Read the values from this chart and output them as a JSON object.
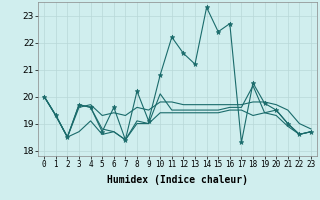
{
  "xlabel": "Humidex (Indice chaleur)",
  "bg_color": "#d0eeee",
  "grid_color": "#b8d8d8",
  "line_color": "#1a6b6b",
  "xlim": [
    -0.5,
    23.5
  ],
  "ylim": [
    17.8,
    23.5
  ],
  "yticks": [
    18,
    19,
    20,
    21,
    22,
    23
  ],
  "xticks": [
    0,
    1,
    2,
    3,
    4,
    5,
    6,
    7,
    8,
    9,
    10,
    11,
    12,
    13,
    14,
    15,
    16,
    17,
    18,
    19,
    20,
    21,
    22,
    23
  ],
  "lines": [
    {
      "y": [
        20.0,
        19.3,
        18.5,
        19.7,
        19.6,
        18.7,
        19.6,
        18.4,
        20.2,
        19.1,
        20.8,
        22.2,
        21.6,
        21.2,
        23.3,
        22.4,
        22.7,
        18.3,
        20.5,
        19.75,
        19.5,
        19.0,
        18.6,
        18.7
      ],
      "marker": "*",
      "markersize": 3.5,
      "lw": 0.8
    },
    {
      "y": [
        20.0,
        19.3,
        18.5,
        19.6,
        19.7,
        19.3,
        19.4,
        19.3,
        19.6,
        19.5,
        19.8,
        19.8,
        19.7,
        19.7,
        19.7,
        19.7,
        19.7,
        19.7,
        19.8,
        19.8,
        19.7,
        19.5,
        19.0,
        18.8
      ],
      "marker": null,
      "markersize": 0,
      "lw": 0.8
    },
    {
      "y": [
        20.0,
        19.3,
        18.5,
        18.7,
        19.1,
        18.6,
        18.7,
        18.4,
        19.0,
        19.0,
        19.4,
        19.4,
        19.4,
        19.4,
        19.4,
        19.4,
        19.5,
        19.5,
        19.3,
        19.4,
        19.3,
        18.9,
        18.6,
        18.7
      ],
      "marker": null,
      "markersize": 0,
      "lw": 0.8
    },
    {
      "y": [
        20.0,
        19.3,
        18.5,
        19.7,
        19.6,
        18.8,
        18.7,
        18.4,
        19.1,
        19.0,
        20.1,
        19.5,
        19.5,
        19.5,
        19.5,
        19.5,
        19.6,
        19.6,
        20.4,
        19.4,
        19.5,
        19.0,
        18.6,
        18.7
      ],
      "marker": null,
      "markersize": 0,
      "lw": 0.8
    }
  ],
  "xtick_fontsize": 5.5,
  "ytick_fontsize": 6.5,
  "xlabel_fontsize": 7
}
